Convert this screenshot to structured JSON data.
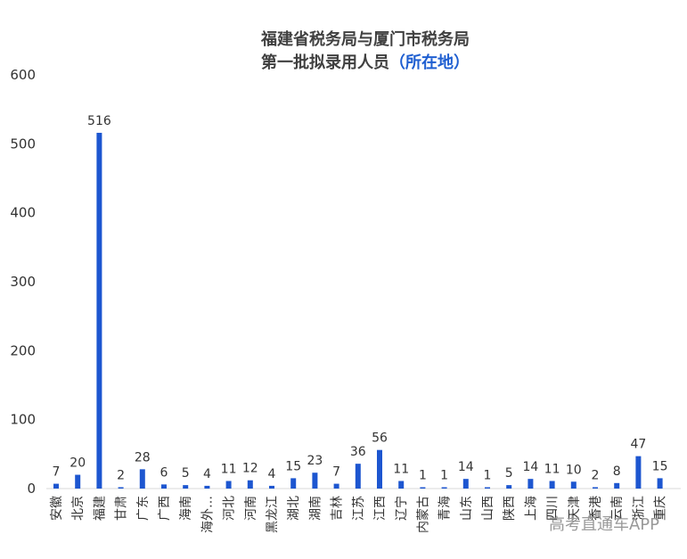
{
  "chart_data": {
    "type": "bar",
    "title_line1": "福建省税务局与厦门市税务局",
    "title_line2": "第一批拟录用人员",
    "title_accent": "（所在地）",
    "categories": [
      "安徽",
      "北京",
      "福建",
      "甘肃",
      "广东",
      "广西",
      "海南",
      "海外…",
      "河北",
      "河南",
      "黑龙江",
      "湖北",
      "湖南",
      "吉林",
      "江苏",
      "江西",
      "辽宁",
      "内蒙古",
      "青海",
      "山东",
      "山西",
      "陕西",
      "上海",
      "四川",
      "天津",
      "香港",
      "云南",
      "浙江",
      "重庆"
    ],
    "values": [
      7,
      20,
      516,
      2,
      28,
      6,
      5,
      4,
      11,
      12,
      4,
      15,
      23,
      7,
      36,
      56,
      11,
      1,
      1,
      14,
      1,
      5,
      14,
      11,
      10,
      2,
      8,
      47,
      15
    ],
    "ylim": [
      0,
      600
    ],
    "yticks": [
      0,
      100,
      200,
      300,
      400,
      500,
      600
    ],
    "grid": false,
    "legend": "none",
    "bar_color": "#1d56d0"
  },
  "watermark": {
    "text": "高考直通车APP"
  }
}
